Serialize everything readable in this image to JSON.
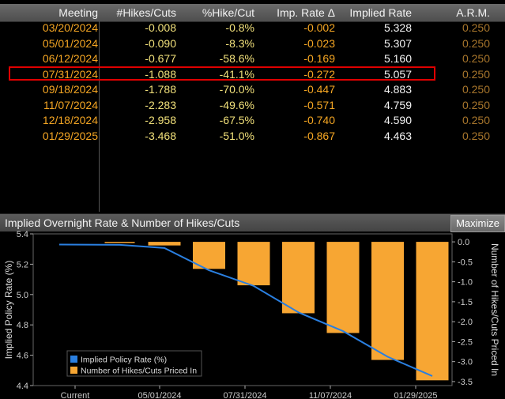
{
  "table": {
    "columns": [
      "Meeting",
      "#Hikes/Cuts",
      "%Hike/Cut",
      "Imp. Rate Δ",
      "Implied Rate",
      "A.R.M."
    ],
    "rows": [
      {
        "meeting": "03/20/2024",
        "hikes": "-0.008",
        "pct": "-0.8%",
        "delta": "-0.002",
        "implied": "5.328",
        "arm": "0.250"
      },
      {
        "meeting": "05/01/2024",
        "hikes": "-0.090",
        "pct": "-8.3%",
        "delta": "-0.023",
        "implied": "5.307",
        "arm": "0.250"
      },
      {
        "meeting": "06/12/2024",
        "hikes": "-0.677",
        "pct": "-58.6%",
        "delta": "-0.169",
        "implied": "5.160",
        "arm": "0.250"
      },
      {
        "meeting": "07/31/2024",
        "hikes": "-1.088",
        "pct": "-41.1%",
        "delta": "-0.272",
        "implied": "5.057",
        "arm": "0.250"
      },
      {
        "meeting": "09/18/2024",
        "hikes": "-1.788",
        "pct": "-70.0%",
        "delta": "-0.447",
        "implied": "4.883",
        "arm": "0.250"
      },
      {
        "meeting": "11/07/2024",
        "hikes": "-2.283",
        "pct": "-49.6%",
        "delta": "-0.571",
        "implied": "4.759",
        "arm": "0.250"
      },
      {
        "meeting": "12/18/2024",
        "hikes": "-2.958",
        "pct": "-67.5%",
        "delta": "-0.740",
        "implied": "4.590",
        "arm": "0.250"
      },
      {
        "meeting": "01/29/2025",
        "hikes": "-3.468",
        "pct": "-51.0%",
        "delta": "-0.867",
        "implied": "4.463",
        "arm": "0.250"
      }
    ],
    "highlighted_row": 3,
    "highlight_color": "#e00000"
  },
  "chart_panel": {
    "title": "Implied Overnight Rate & Number of Hikes/Cuts",
    "maximize_label": "Maximize"
  },
  "chart_data": {
    "type": "bar",
    "categories": [
      "Current",
      "03/20/2024",
      "05/01/2024",
      "06/12/2024",
      "07/31/2024",
      "09/18/2024",
      "11/07/2024",
      "12/18/2024",
      "01/29/2025"
    ],
    "x_tick_labels": [
      "Current",
      "05/01/2024",
      "07/31/2024",
      "11/07/2024",
      "01/29/2025"
    ],
    "series": [
      {
        "name": "Implied Policy Rate (%)",
        "type": "line",
        "axis": "left",
        "color": "#2a7fe0",
        "values": [
          5.33,
          5.328,
          5.307,
          5.16,
          5.057,
          4.883,
          4.759,
          4.59,
          4.463
        ]
      },
      {
        "name": "Number of Hikes/Cuts Priced In",
        "type": "bar",
        "axis": "right",
        "color": "#f7a633",
        "values": [
          null,
          -0.008,
          -0.09,
          -0.677,
          -1.088,
          -1.788,
          -2.283,
          -2.958,
          -3.468
        ]
      }
    ],
    "left_axis": {
      "label": "Implied Policy Rate (%)",
      "ylim": [
        4.4,
        5.4
      ],
      "ticks": [
        "5.4",
        "5.2",
        "5.0",
        "4.8",
        "4.6",
        "4.4"
      ]
    },
    "right_axis": {
      "label": "Number of Hikes/Cuts Priced In",
      "ylim": [
        -3.6,
        0.2
      ],
      "ticks": [
        "0.0",
        "-0.5",
        "-1.0",
        "-1.5",
        "-2.0",
        "-2.5",
        "-3.0",
        "-3.5"
      ]
    },
    "legend_position": "bottom-left",
    "grid": false
  }
}
